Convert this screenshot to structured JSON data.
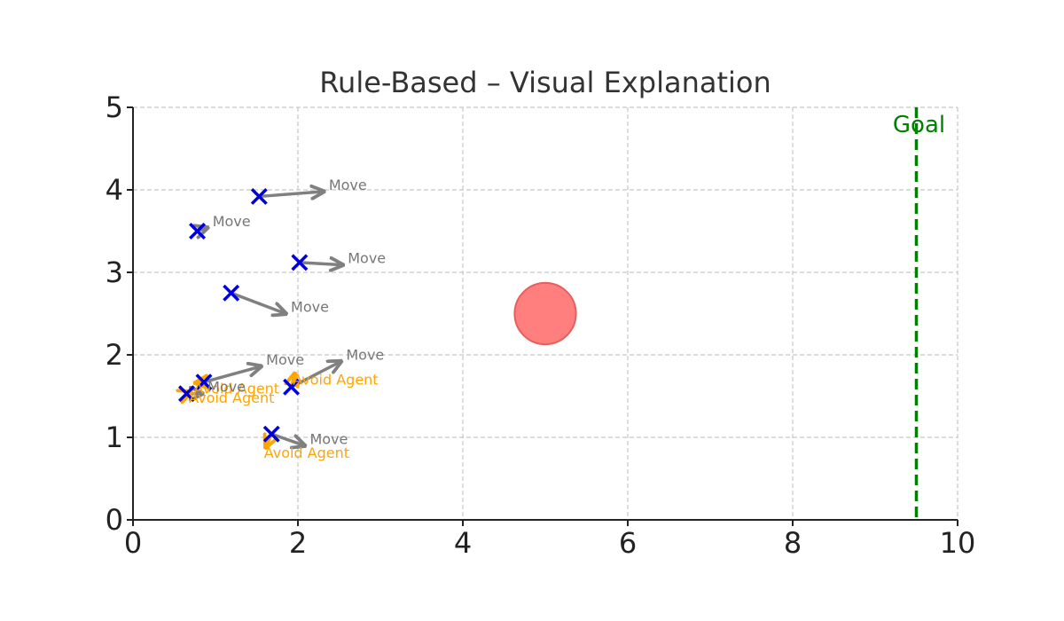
{
  "chart_data": {
    "type": "scatter",
    "title": "Rule-Based – Visual Explanation",
    "xlabel": "",
    "ylabel": "",
    "xlim": [
      0,
      10
    ],
    "ylim": [
      0,
      5
    ],
    "xticks": [
      0,
      2,
      4,
      6,
      8,
      10
    ],
    "yticks": [
      0,
      1,
      2,
      3,
      4,
      5
    ],
    "xtick_labels": [
      "0",
      "2",
      "4",
      "6",
      "8",
      "10"
    ],
    "ytick_labels": [
      "0",
      "1",
      "2",
      "3",
      "4",
      "5"
    ],
    "grid": true,
    "colors": {
      "agent": "#0000dd",
      "move_arrow": "#808080",
      "move_label": "#777777",
      "avoid": "#ffa500",
      "obstacle_fill": "#ff7f7f",
      "obstacle_edge": "#e85d5d",
      "goal": "#008000",
      "grid": "#c8c8c8",
      "axis": "#222222",
      "title": "#333333"
    },
    "goal": {
      "x": 9.5,
      "label": "Goal"
    },
    "obstacle": {
      "x": 5.0,
      "y": 2.5,
      "radius": 0.4
    },
    "agents": [
      {
        "x": 1.53,
        "y": 3.92,
        "move": {
          "dx": 0.78,
          "dy": 0.06,
          "label": "Move"
        }
      },
      {
        "x": 0.78,
        "y": 3.5,
        "move": {
          "dx": 0.12,
          "dy": 0.04,
          "label": "Move"
        }
      },
      {
        "x": 2.02,
        "y": 3.12,
        "move": {
          "dx": 0.52,
          "dy": -0.03,
          "label": "Move"
        }
      },
      {
        "x": 1.19,
        "y": 2.75,
        "move": {
          "dx": 0.66,
          "dy": -0.25,
          "label": "Move"
        }
      },
      {
        "x": 0.86,
        "y": 1.67,
        "move": {
          "dx": 0.69,
          "dy": 0.19,
          "label": "Move"
        },
        "avoid": {
          "dx": -0.1,
          "dy": -0.01,
          "label": "Avoid Agent"
        }
      },
      {
        "x": 1.92,
        "y": 1.61,
        "move": {
          "dx": 0.6,
          "dy": 0.31,
          "label": "Move"
        },
        "avoid": {
          "dx": 0.04,
          "dy": 0.16,
          "label": "Avoid Agent"
        }
      },
      {
        "x": 0.65,
        "y": 1.53,
        "move": {
          "dx": 0.19,
          "dy": 0.0,
          "label": "Move"
        },
        "avoid": {
          "dx": 0.05,
          "dy": 0.02,
          "label": "Avoid Agent"
        }
      },
      {
        "x": 1.68,
        "y": 1.04,
        "move": {
          "dx": 0.4,
          "dy": -0.14,
          "label": "Move"
        },
        "avoid": {
          "dx": -0.07,
          "dy": -0.16,
          "label": "Avoid Agent"
        }
      }
    ]
  }
}
